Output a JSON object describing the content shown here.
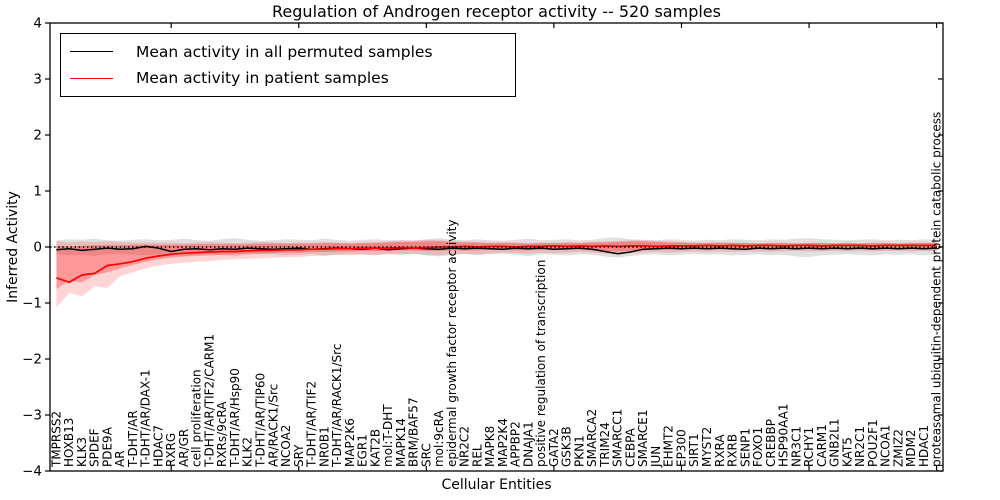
{
  "figure": {
    "title": "Regulation of Androgen receptor activity -- 520 samples",
    "xlabel": "Cellular Entities",
    "ylabel": "Inferred Activity",
    "legend": [
      {
        "label": "Mean activity in all permuted samples",
        "color": "#000000"
      },
      {
        "label": "Mean activity in patient samples",
        "color": "#ff0000"
      }
    ]
  },
  "chart_data": {
    "type": "line",
    "title": "Regulation of Androgen receptor activity -- 520 samples",
    "xlabel": "Cellular Entities",
    "ylabel": "Inferred Activity",
    "ylim": [
      -4,
      4
    ],
    "grid": false,
    "legend_position": "upper left",
    "zero_line_style": "dotted",
    "yticks": {
      "values": [
        4,
        3,
        2,
        1,
        0,
        -1,
        -2,
        -3,
        -4
      ],
      "labels": [
        "4",
        "3",
        "2",
        "1",
        "0",
        "−1",
        "−2",
        "−3",
        "−4"
      ]
    },
    "categories": [
      "TMPRSS2",
      "HOXB13",
      "KLK3",
      "SPDEF",
      "PDE9A",
      "AR",
      "T-DHT/AR",
      "T-DHT/AR/DAX-1",
      "HDAC7",
      "RXRG",
      "AR/GR",
      "cell proliferation",
      "T-DHT/AR/TIF2/CARM1",
      "RXRs/9cRA",
      "T-DHT/AR/Hsp90",
      "KLK2",
      "T-DHT/AR/TIP60",
      "AR/RACK1/Src",
      "NCOA2",
      "SRY",
      "T-DHT/AR/TIF2",
      "NR0B1",
      "T-DHT/AR/RACK1/Src",
      "MAP2K6",
      "EGR1",
      "KAT2B",
      "mol:T-DHT",
      "MAPK14",
      "BRM/BAF57",
      "SRC",
      "mol:9cRA",
      "epidermal growth factor receptor activity",
      "NR2C2",
      "REL",
      "MAPK8",
      "MAP2K4",
      "APPBP2",
      "DNAJA1",
      "positive regulation of transcription",
      "GATA2",
      "GSK3B",
      "PKN1",
      "SMARCA2",
      "TRIM24",
      "SMARCC1",
      "CEBPA",
      "SMARCE1",
      "JUN",
      "EHMT2",
      "EP300",
      "SIRT1",
      "MYST2",
      "RXRA",
      "RXRB",
      "SENP1",
      "FOXO1",
      "CREBBP",
      "HSP90AA1",
      "NR3C1",
      "RCHY1",
      "CARM1",
      "GNB2L1",
      "KAT5",
      "NR2C1",
      "POU2F1",
      "NCOA1",
      "ZMIZ2",
      "MDM2",
      "HDAC1",
      "proteasomal ubiquitin-dependent protein catabolic process"
    ],
    "series": [
      {
        "name": "Mean activity in all permuted samples",
        "color": "#000000",
        "values": [
          -0.05,
          -0.03,
          -0.06,
          -0.04,
          -0.02,
          -0.04,
          -0.03,
          0.01,
          -0.02,
          -0.08,
          -0.04,
          -0.03,
          -0.05,
          -0.03,
          -0.04,
          -0.02,
          -0.03,
          -0.04,
          -0.03,
          -0.02,
          -0.04,
          -0.03,
          -0.02,
          -0.03,
          -0.04,
          -0.02,
          -0.05,
          -0.03,
          -0.02,
          -0.03,
          -0.04,
          -0.02,
          -0.03,
          -0.02,
          -0.03,
          -0.04,
          -0.02,
          -0.03,
          -0.02,
          -0.04,
          -0.03,
          -0.02,
          -0.04,
          -0.08,
          -0.12,
          -0.09,
          -0.04,
          -0.03,
          -0.02,
          -0.03,
          -0.02,
          -0.03,
          -0.02,
          -0.03,
          -0.04,
          -0.02,
          -0.03,
          -0.02,
          -0.03,
          -0.02,
          -0.03,
          -0.02,
          -0.03,
          -0.02,
          -0.03,
          -0.02,
          -0.03,
          -0.02,
          -0.03,
          -0.02
        ]
      },
      {
        "name": "Mean activity in patient samples",
        "color": "#ff0000",
        "values": [
          -0.55,
          -0.63,
          -0.5,
          -0.47,
          -0.33,
          -0.3,
          -0.26,
          -0.2,
          -0.16,
          -0.13,
          -0.11,
          -0.1,
          -0.09,
          -0.08,
          -0.08,
          -0.07,
          -0.06,
          -0.06,
          -0.05,
          -0.05,
          -0.04,
          -0.04,
          -0.03,
          -0.03,
          -0.02,
          -0.02,
          -0.02,
          -0.01,
          -0.02,
          -0.01,
          0.0,
          0.0,
          0.01,
          0.0,
          0.01,
          0.01,
          0.0,
          0.01,
          0.01,
          0.02,
          0.01,
          0.02,
          0.01,
          0.02,
          0.01,
          0.02,
          0.02,
          0.01,
          0.02,
          0.02,
          0.02,
          0.03,
          0.02,
          0.03,
          0.02,
          0.03,
          0.03,
          0.02,
          0.03,
          0.03,
          0.02,
          0.03,
          0.03,
          0.03,
          0.02,
          0.03,
          0.03,
          0.03,
          0.03,
          0.03
        ]
      }
    ],
    "bands": [
      {
        "name": "permuted-samples-range",
        "color": "rgba(0,0,0,0.12)",
        "lower": [
          -0.13,
          -0.15,
          -0.14,
          -0.16,
          -0.13,
          -0.12,
          -0.14,
          -0.15,
          -0.13,
          -0.14,
          -0.16,
          -0.13,
          -0.12,
          -0.15,
          -0.17,
          -0.14,
          -0.12,
          -0.13,
          -0.15,
          -0.14,
          -0.13,
          -0.16,
          -0.14,
          -0.12,
          -0.14,
          -0.15,
          -0.13,
          -0.14,
          -0.12,
          -0.15,
          -0.17,
          -0.14,
          -0.13,
          -0.15,
          -0.13,
          -0.12,
          -0.14,
          -0.16,
          -0.13,
          -0.14,
          -0.15,
          -0.13,
          -0.14,
          -0.17,
          -0.19,
          -0.16,
          -0.14,
          -0.13,
          -0.15,
          -0.14,
          -0.12,
          -0.14,
          -0.13,
          -0.15,
          -0.14,
          -0.13,
          -0.15,
          -0.14,
          -0.17,
          -0.18,
          -0.15,
          -0.14,
          -0.13,
          -0.14,
          -0.15,
          -0.13,
          -0.14,
          -0.13,
          -0.15,
          -0.14
        ],
        "upper": [
          0.12,
          0.14,
          0.13,
          0.15,
          0.12,
          0.11,
          0.13,
          0.14,
          0.12,
          0.13,
          0.15,
          0.12,
          0.11,
          0.14,
          0.16,
          0.13,
          0.11,
          0.12,
          0.14,
          0.13,
          0.12,
          0.15,
          0.13,
          0.11,
          0.13,
          0.14,
          0.12,
          0.13,
          0.11,
          0.14,
          0.16,
          0.13,
          0.12,
          0.14,
          0.12,
          0.11,
          0.13,
          0.15,
          0.12,
          0.13,
          0.14,
          0.12,
          0.13,
          0.16,
          0.17,
          0.14,
          0.13,
          0.12,
          0.14,
          0.13,
          0.11,
          0.13,
          0.12,
          0.14,
          0.13,
          0.12,
          0.14,
          0.13,
          0.15,
          0.16,
          0.14,
          0.13,
          0.12,
          0.13,
          0.14,
          0.12,
          0.13,
          0.12,
          0.14,
          0.13
        ]
      },
      {
        "name": "patient-samples-outer-range",
        "color": "rgba(255,60,60,0.22)",
        "lower": [
          -1.08,
          -0.82,
          -0.88,
          -0.7,
          -0.73,
          -0.52,
          -0.45,
          -0.38,
          -0.33,
          -0.3,
          -0.28,
          -0.26,
          -0.25,
          -0.23,
          -0.22,
          -0.21,
          -0.2,
          -0.19,
          -0.18,
          -0.18,
          -0.16,
          -0.15,
          -0.14,
          -0.15,
          -0.13,
          -0.14,
          -0.12,
          -0.13,
          -0.12,
          -0.14,
          -0.15,
          -0.13,
          -0.12,
          -0.13,
          -0.11,
          -0.1,
          -0.11,
          -0.12,
          -0.1,
          -0.11,
          -0.1,
          -0.09,
          -0.1,
          -0.12,
          -0.13,
          -0.11,
          -0.1,
          -0.09,
          -0.1,
          -0.09,
          -0.08,
          -0.09,
          -0.08,
          -0.09,
          -0.08,
          -0.08,
          -0.09,
          -0.08,
          -0.07,
          -0.08,
          -0.08,
          -0.07,
          -0.08,
          -0.07,
          -0.08,
          -0.07,
          -0.07,
          -0.08,
          -0.07,
          -0.07
        ],
        "upper": [
          0.1,
          0.08,
          0.1,
          0.09,
          0.1,
          0.09,
          0.08,
          0.08,
          0.08,
          0.08,
          0.07,
          0.08,
          0.09,
          0.08,
          0.07,
          0.08,
          0.09,
          0.08,
          0.07,
          0.08,
          0.08,
          0.09,
          0.08,
          0.07,
          0.08,
          0.09,
          0.1,
          0.11,
          0.12,
          0.13,
          0.12,
          0.11,
          0.1,
          0.09,
          0.08,
          0.09,
          0.08,
          0.07,
          0.08,
          0.08,
          0.09,
          0.08,
          0.09,
          0.1,
          0.11,
          0.12,
          0.12,
          0.11,
          0.1,
          0.09,
          0.08,
          0.08,
          0.09,
          0.08,
          0.08,
          0.07,
          0.08,
          0.08,
          0.07,
          0.08,
          0.08,
          0.07,
          0.08,
          0.07,
          0.08,
          0.08,
          0.07,
          0.08,
          0.08,
          0.08
        ]
      },
      {
        "name": "patient-samples-inner-range",
        "color": "rgba(255,0,0,0.28)",
        "lower": [
          -0.75,
          -0.6,
          -0.63,
          -0.5,
          -0.45,
          -0.38,
          -0.32,
          -0.26,
          -0.22,
          -0.19,
          -0.17,
          -0.16,
          -0.15,
          -0.14,
          -0.13,
          -0.12,
          -0.12,
          -0.11,
          -0.1,
          -0.1,
          -0.09,
          -0.09,
          -0.08,
          -0.08,
          -0.07,
          -0.07,
          -0.07,
          -0.06,
          -0.06,
          -0.07,
          -0.07,
          -0.06,
          -0.06,
          -0.06,
          -0.05,
          -0.05,
          -0.06,
          -0.06,
          -0.05,
          -0.05,
          -0.05,
          -0.05,
          -0.06,
          -0.07,
          -0.08,
          -0.07,
          -0.06,
          -0.05,
          -0.05,
          -0.05,
          -0.04,
          -0.05,
          -0.04,
          -0.05,
          -0.04,
          -0.04,
          -0.05,
          -0.04,
          -0.04,
          -0.04,
          -0.05,
          -0.04,
          -0.04,
          -0.04,
          -0.05,
          -0.04,
          -0.04,
          -0.04,
          -0.04,
          -0.04
        ],
        "upper": [
          0.02,
          0.01,
          0.02,
          0.03,
          0.03,
          0.03,
          0.04,
          0.04,
          0.04,
          0.04,
          0.04,
          0.05,
          0.05,
          0.05,
          0.05,
          0.05,
          0.06,
          0.06,
          0.06,
          0.06,
          0.06,
          0.07,
          0.07,
          0.06,
          0.07,
          0.07,
          0.08,
          0.09,
          0.09,
          0.1,
          0.1,
          0.09,
          0.08,
          0.08,
          0.07,
          0.07,
          0.07,
          0.06,
          0.07,
          0.07,
          0.07,
          0.07,
          0.08,
          0.08,
          0.09,
          0.1,
          0.1,
          0.09,
          0.08,
          0.08,
          0.07,
          0.07,
          0.07,
          0.07,
          0.07,
          0.06,
          0.07,
          0.07,
          0.06,
          0.07,
          0.07,
          0.06,
          0.07,
          0.06,
          0.07,
          0.07,
          0.06,
          0.07,
          0.07,
          0.07
        ]
      }
    ]
  }
}
